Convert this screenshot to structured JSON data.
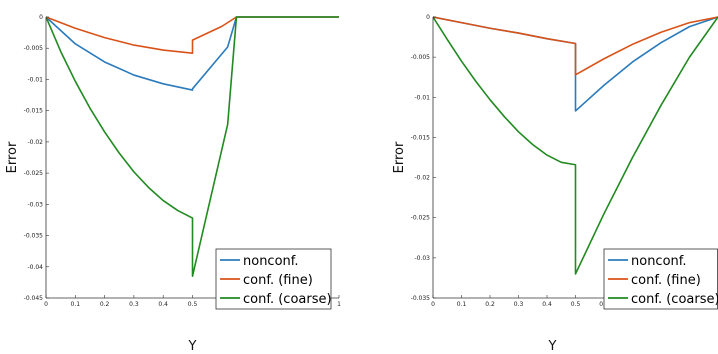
{
  "chart_data": [
    {
      "type": "line",
      "xlabel": "Y",
      "ylabel": "Error",
      "xlim": [
        0,
        1
      ],
      "ylim": [
        -0.045,
        0
      ],
      "xticks": [
        "0",
        "0.1",
        "0.2",
        "0.3",
        "0.4",
        "0.5",
        "0.6",
        "0.7",
        "0.8",
        "0.9",
        "1"
      ],
      "yticks": [
        "0",
        "-0.005",
        "-0.01",
        "-0.015",
        "-0.02",
        "-0.025",
        "-0.03",
        "-0.035",
        "-0.04",
        "-0.045"
      ],
      "legend_position": "bottom-right",
      "grid": false,
      "series": [
        {
          "name": "nonconf.",
          "color": "#2b7bbd",
          "x": [
            0,
            0.1,
            0.2,
            0.3,
            0.4,
            0.5,
            0.5,
            0.62,
            0.65,
            1.0
          ],
          "y": [
            0,
            -0.0043,
            -0.0072,
            -0.0093,
            -0.0107,
            -0.0117,
            -0.0115,
            -0.0048,
            0,
            0
          ]
        },
        {
          "name": "conf. (fine)",
          "color": "#d95319",
          "x": [
            0,
            0.1,
            0.2,
            0.3,
            0.4,
            0.5,
            0.5,
            0.6,
            0.65,
            1.0
          ],
          "y": [
            0,
            -0.0018,
            -0.0033,
            -0.0045,
            -0.0053,
            -0.0058,
            -0.0037,
            -0.0015,
            0,
            0
          ]
        },
        {
          "name": "conf. (coarse)",
          "color": "#218a21",
          "x": [
            0,
            0.05,
            0.1,
            0.15,
            0.2,
            0.25,
            0.3,
            0.35,
            0.4,
            0.45,
            0.5,
            0.5,
            0.62,
            0.65,
            1.0
          ],
          "y": [
            0,
            -0.0055,
            -0.0103,
            -0.0146,
            -0.0184,
            -0.0218,
            -0.0248,
            -0.0273,
            -0.0294,
            -0.031,
            -0.0322,
            -0.0415,
            -0.0172,
            0,
            0
          ]
        }
      ]
    },
    {
      "type": "line",
      "xlabel": "Y",
      "ylabel": "Error",
      "xlim": [
        0,
        1
      ],
      "ylim": [
        -0.035,
        0
      ],
      "xticks": [
        "0",
        "0.1",
        "0.2",
        "0.3",
        "0.4",
        "0.5",
        "0.6",
        "0.7",
        "0.8",
        "0.9"
      ],
      "yticks": [
        "0",
        "-0.005",
        "-0.01",
        "-0.015",
        "-0.02",
        "-0.025",
        "-0.03",
        "-0.035"
      ],
      "legend_position": "bottom-right",
      "grid": false,
      "series": [
        {
          "name": "nonconf.",
          "color": "#2b7bbd",
          "x": [
            0,
            0.1,
            0.2,
            0.3,
            0.4,
            0.5,
            0.5,
            0.6,
            0.7,
            0.8,
            0.9,
            1.0
          ],
          "y": [
            0,
            -0.0007,
            -0.0014,
            -0.002,
            -0.0027,
            -0.0033,
            -0.0117,
            -0.0085,
            -0.0056,
            -0.0032,
            -0.0012,
            0
          ]
        },
        {
          "name": "conf. (fine)",
          "color": "#d95319",
          "x": [
            0,
            0.1,
            0.2,
            0.3,
            0.4,
            0.5,
            0.5,
            0.6,
            0.7,
            0.8,
            0.9,
            1.0
          ],
          "y": [
            0,
            -0.0007,
            -0.0014,
            -0.002,
            -0.0027,
            -0.0033,
            -0.0072,
            -0.0052,
            -0.0034,
            -0.0019,
            -0.0007,
            0
          ]
        },
        {
          "name": "conf. (coarse)",
          "color": "#218a21",
          "x": [
            0,
            0.05,
            0.1,
            0.15,
            0.2,
            0.25,
            0.3,
            0.35,
            0.4,
            0.45,
            0.5,
            0.5,
            0.6,
            0.7,
            0.8,
            0.9,
            1.0
          ],
          "y": [
            0,
            -0.0028,
            -0.0055,
            -0.008,
            -0.0103,
            -0.0124,
            -0.0143,
            -0.0159,
            -0.0172,
            -0.0181,
            -0.0184,
            -0.032,
            -0.0245,
            -0.0175,
            -0.011,
            -0.005,
            0
          ]
        }
      ]
    }
  ]
}
